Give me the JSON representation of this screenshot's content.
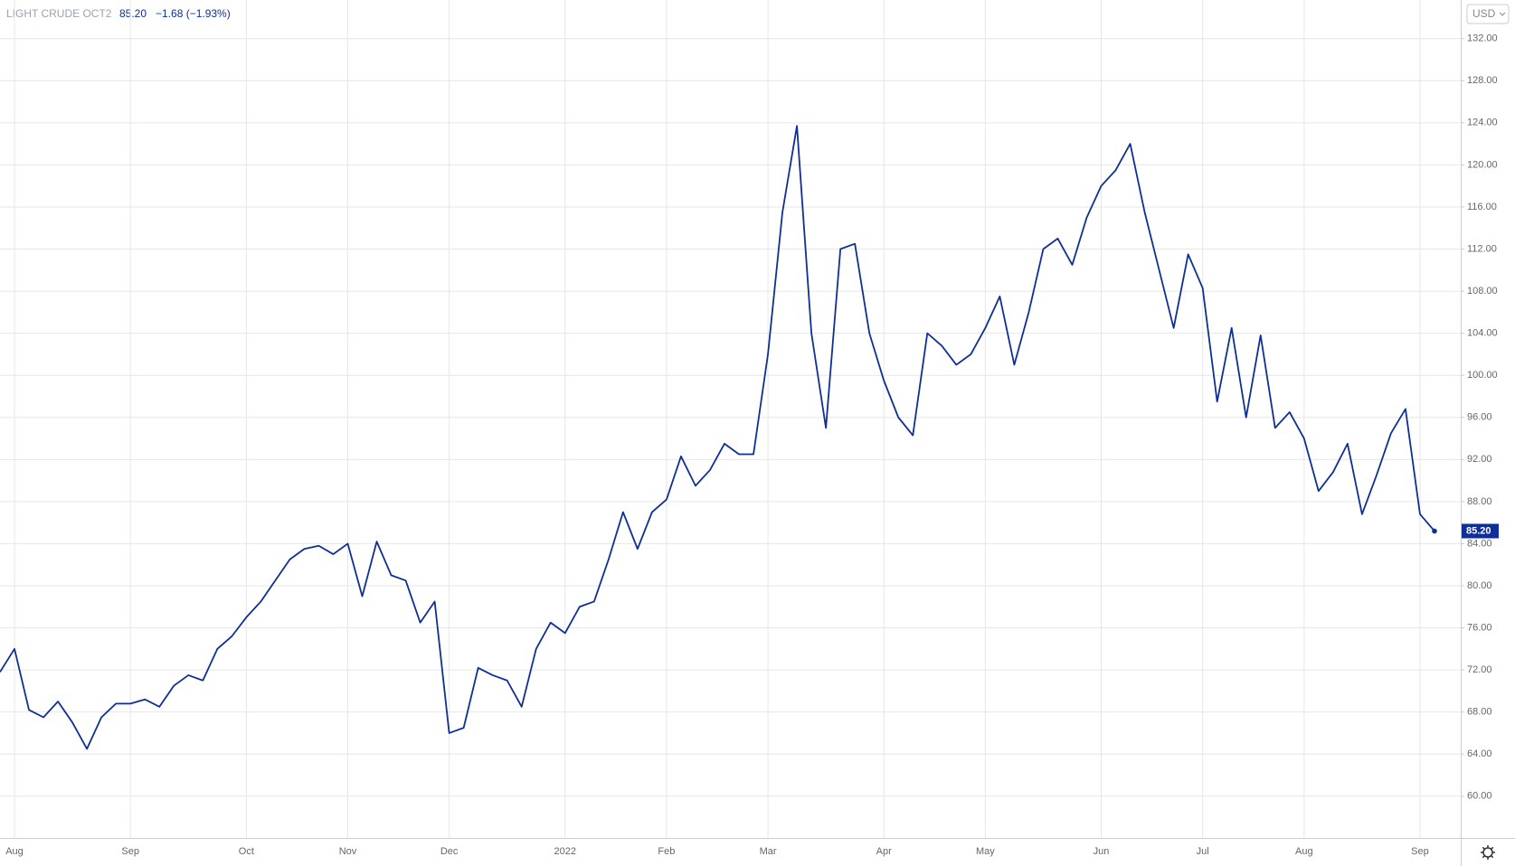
{
  "chart_data": {
    "type": "line",
    "symbol": "LIGHT CRUDE OCT2",
    "last_price": "85.20",
    "change": "−1.68 (−1.93%)",
    "currency": "USD",
    "categories": [
      null,
      "Aug",
      null,
      null,
      null,
      null,
      null,
      null,
      null,
      "Sep",
      null,
      null,
      null,
      null,
      null,
      null,
      null,
      "Oct",
      null,
      null,
      null,
      null,
      null,
      null,
      "Nov",
      null,
      null,
      null,
      null,
      null,
      null,
      "Dec",
      null,
      null,
      null,
      null,
      null,
      null,
      null,
      "2022",
      null,
      null,
      null,
      null,
      null,
      null,
      "Feb",
      null,
      null,
      null,
      null,
      null,
      null,
      "Mar",
      null,
      null,
      null,
      null,
      null,
      null,
      null,
      "Apr",
      null,
      null,
      null,
      null,
      null,
      null,
      "May",
      null,
      null,
      null,
      null,
      null,
      null,
      null,
      "Jun",
      null,
      null,
      null,
      null,
      null,
      null,
      "Jul",
      null,
      null,
      null,
      null,
      null,
      null,
      "Aug",
      null,
      null,
      null,
      null,
      null,
      null,
      null,
      "Sep",
      null
    ],
    "series": [
      {
        "color": "#0f2f96",
        "values": [
          71.8,
          74,
          68.2,
          67.5,
          69,
          67,
          64.5,
          67.5,
          68.8,
          68.8,
          69.2,
          68.5,
          70.5,
          71.5,
          71,
          74,
          75.2,
          77,
          78.5,
          80.5,
          82.5,
          83.5,
          83.8,
          83,
          84,
          79,
          84.2,
          81,
          80.5,
          76.5,
          78.5,
          66,
          66.5,
          72.2,
          71.5,
          71,
          68.5,
          74,
          76.5,
          75.5,
          78,
          78.5,
          82.5,
          87,
          83.5,
          87,
          88.2,
          92.3,
          89.5,
          91,
          93.5,
          92.5,
          92.5,
          102,
          115.5,
          123.7,
          104,
          95,
          112,
          112.5,
          104,
          99.5,
          96,
          94.3,
          104,
          102.8,
          101,
          102,
          104.5,
          107.5,
          101,
          106,
          112,
          113,
          110.5,
          115,
          118,
          119.5,
          122,
          115.5,
          110,
          104.5,
          111.5,
          108.3,
          97.5,
          104.5,
          96,
          103.8,
          95,
          96.5,
          94,
          89,
          90.8,
          93.5,
          86.8,
          90.5,
          94.5,
          96.8,
          86.8,
          85.2
        ]
      }
    ],
    "ylim": [
      56.03,
      135.67
    ],
    "yticks": [
      {
        "value": 60,
        "label": "60.00"
      },
      {
        "value": 64,
        "label": "64.00"
      },
      {
        "value": 68,
        "label": "68.00"
      },
      {
        "value": 72,
        "label": "72.00"
      },
      {
        "value": 76,
        "label": "76.00"
      },
      {
        "value": 80,
        "label": "80.00"
      },
      {
        "value": 84,
        "label": "84.00"
      },
      {
        "value": 88,
        "label": "88.00"
      },
      {
        "value": 92,
        "label": "92.00"
      },
      {
        "value": 96,
        "label": "96.00"
      },
      {
        "value": 100,
        "label": "100.00"
      },
      {
        "value": 104,
        "label": "104.00"
      },
      {
        "value": 108,
        "label": "108.00"
      },
      {
        "value": 112,
        "label": "112.00"
      },
      {
        "value": 116,
        "label": "116.00"
      },
      {
        "value": 120,
        "label": "120.00"
      },
      {
        "value": 124,
        "label": "124.00"
      },
      {
        "value": 128,
        "label": "128.00"
      },
      {
        "value": 132,
        "label": "132.00"
      }
    ],
    "grid": true
  }
}
